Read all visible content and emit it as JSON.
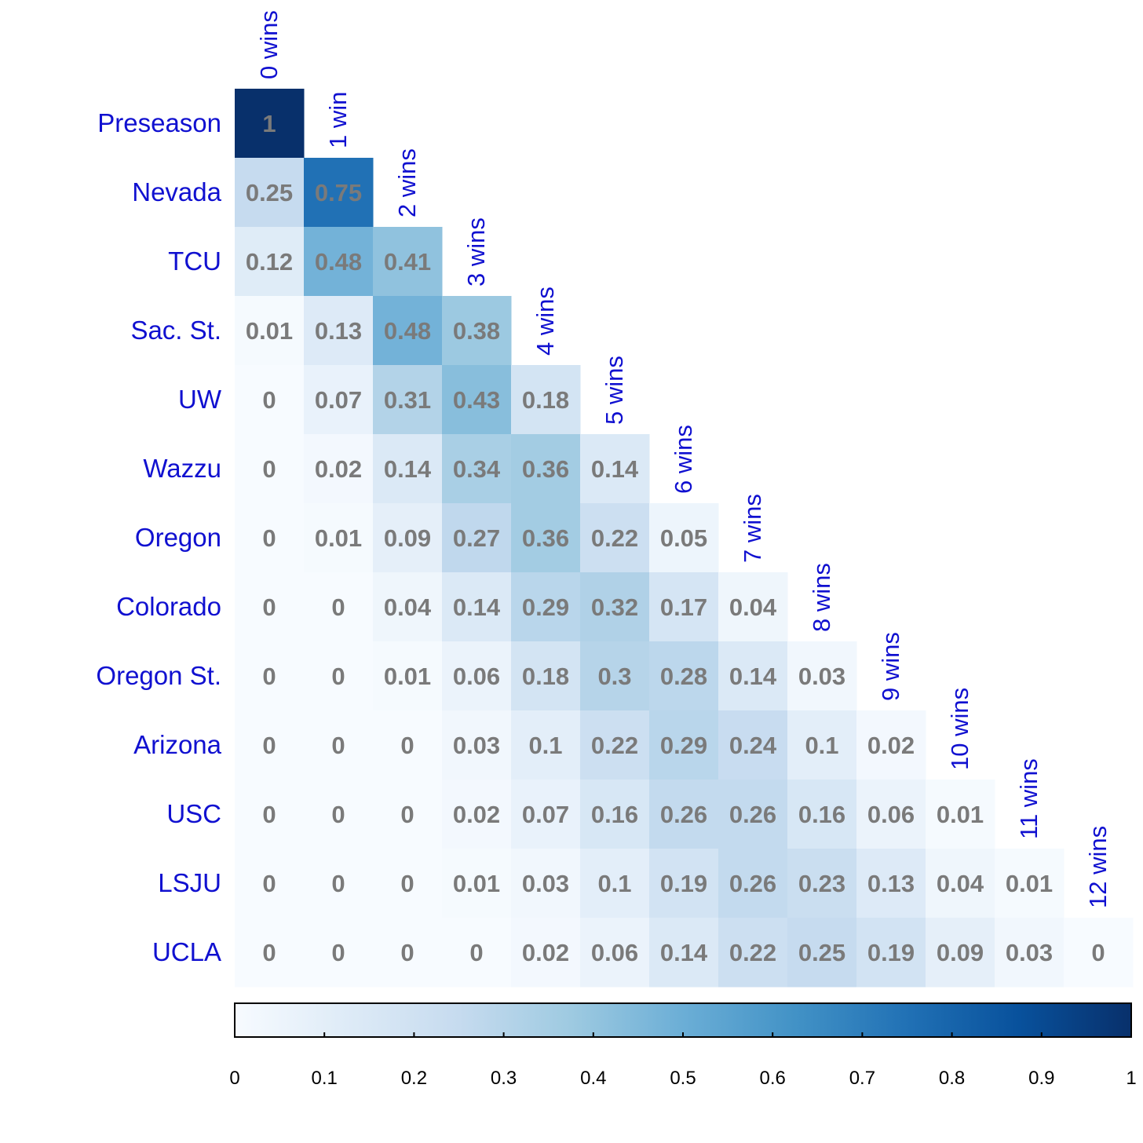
{
  "chart_data": {
    "type": "heatmap",
    "rows": [
      "Preseason",
      "Nevada",
      "TCU",
      "Sac. St.",
      "UW",
      "Wazzu",
      "Oregon",
      "Colorado",
      "Oregon St.",
      "Arizona",
      "USC",
      "LSJU",
      "UCLA"
    ],
    "columns": [
      "0 wins",
      "1 win",
      "2 wins",
      "3 wins",
      "4 wins",
      "5 wins",
      "6 wins",
      "7 wins",
      "8 wins",
      "9 wins",
      "10 wins",
      "11 wins",
      "12 wins"
    ],
    "values": [
      [
        1
      ],
      [
        0.25,
        0.75
      ],
      [
        0.12,
        0.48,
        0.41
      ],
      [
        0.01,
        0.13,
        0.48,
        0.38
      ],
      [
        0,
        0.07,
        0.31,
        0.43,
        0.18
      ],
      [
        0,
        0.02,
        0.14,
        0.34,
        0.36,
        0.14
      ],
      [
        0,
        0.01,
        0.09,
        0.27,
        0.36,
        0.22,
        0.05
      ],
      [
        0,
        0,
        0.04,
        0.14,
        0.29,
        0.32,
        0.17,
        0.04
      ],
      [
        0,
        0,
        0.01,
        0.06,
        0.18,
        0.3,
        0.28,
        0.14,
        0.03
      ],
      [
        0,
        0,
        0,
        0.03,
        0.1,
        0.22,
        0.29,
        0.24,
        0.1,
        0.02
      ],
      [
        0,
        0,
        0,
        0.02,
        0.07,
        0.16,
        0.26,
        0.26,
        0.16,
        0.06,
        0.01
      ],
      [
        0,
        0,
        0,
        0.01,
        0.03,
        0.1,
        0.19,
        0.26,
        0.23,
        0.13,
        0.04,
        0.01
      ],
      [
        0,
        0,
        0,
        0,
        0.02,
        0.06,
        0.14,
        0.22,
        0.25,
        0.19,
        0.09,
        0.03,
        0
      ]
    ],
    "colorbar": {
      "range": [
        0,
        1
      ],
      "ticks": [
        "0",
        "0.1",
        "0.2",
        "0.3",
        "0.4",
        "0.5",
        "0.6",
        "0.7",
        "0.8",
        "0.9",
        "1"
      ]
    },
    "colormap": [
      "#f7fbff",
      "#deebf7",
      "#c6dbef",
      "#9ecae1",
      "#6baed6",
      "#4292c6",
      "#2171b5",
      "#08519c",
      "#08306b"
    ],
    "label_color": "#1010d0",
    "value_text_color": "#7a7a7a"
  }
}
